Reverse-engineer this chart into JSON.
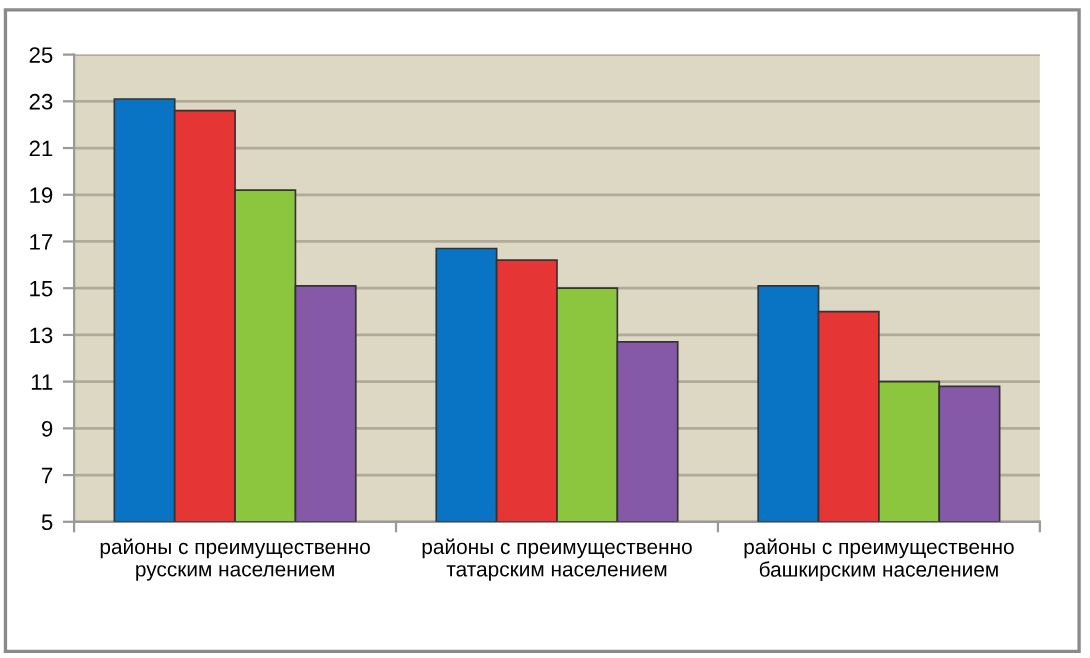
{
  "chart_data": {
    "type": "bar",
    "categories": [
      "районы с преимущественно\nрусским населением",
      "районы с преимущественно\nтатарским населением",
      "районы с преимущественно\nбашкирским населением"
    ],
    "series": [
      {
        "color": "#0a74c4",
        "values": [
          23.1,
          16.7,
          15.1
        ]
      },
      {
        "color": "#e53534",
        "values": [
          22.6,
          16.2,
          14.0
        ]
      },
      {
        "color": "#8cc63f",
        "values": [
          19.2,
          15.0,
          11.0
        ]
      },
      {
        "color": "#8558a8",
        "values": [
          15.1,
          12.7,
          10.8
        ]
      }
    ],
    "ylim": [
      5,
      25
    ],
    "yticks": [
      5,
      7,
      9,
      11,
      13,
      15,
      17,
      19,
      21,
      23,
      25
    ],
    "grid": "y",
    "legend": false
  }
}
